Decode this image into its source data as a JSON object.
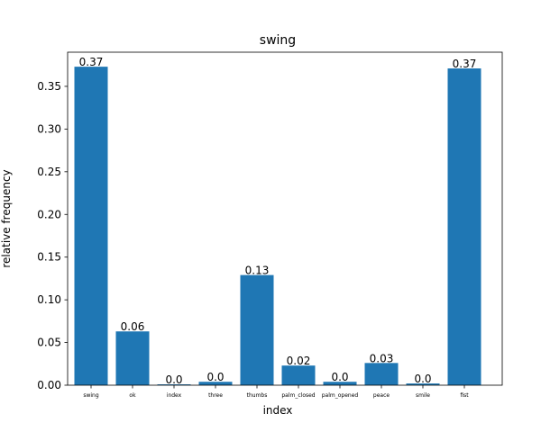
{
  "chart_data": {
    "type": "bar",
    "title": "swing",
    "xlabel": "index",
    "ylabel": "relative frequency",
    "categories": [
      "swing",
      "ok",
      "index",
      "three",
      "thumbs",
      "palm_closed",
      "palm_opened",
      "peace",
      "smile",
      "fist"
    ],
    "values": [
      0.373,
      0.063,
      0.001,
      0.004,
      0.129,
      0.023,
      0.004,
      0.026,
      0.002,
      0.371
    ],
    "data_labels": [
      "0.37",
      "0.06",
      "0.0",
      "0.0",
      "0.13",
      "0.02",
      "0.0",
      "0.03",
      "0.0",
      "0.37"
    ],
    "ylim": [
      0,
      0.39
    ],
    "yticks": [
      0.0,
      0.05,
      0.1,
      0.15,
      0.2,
      0.25,
      0.3,
      0.35
    ],
    "ytick_labels": [
      "0.00",
      "0.05",
      "0.10",
      "0.15",
      "0.20",
      "0.25",
      "0.30",
      "0.35"
    ],
    "grid": false,
    "bar_color": "#1f77b4"
  }
}
